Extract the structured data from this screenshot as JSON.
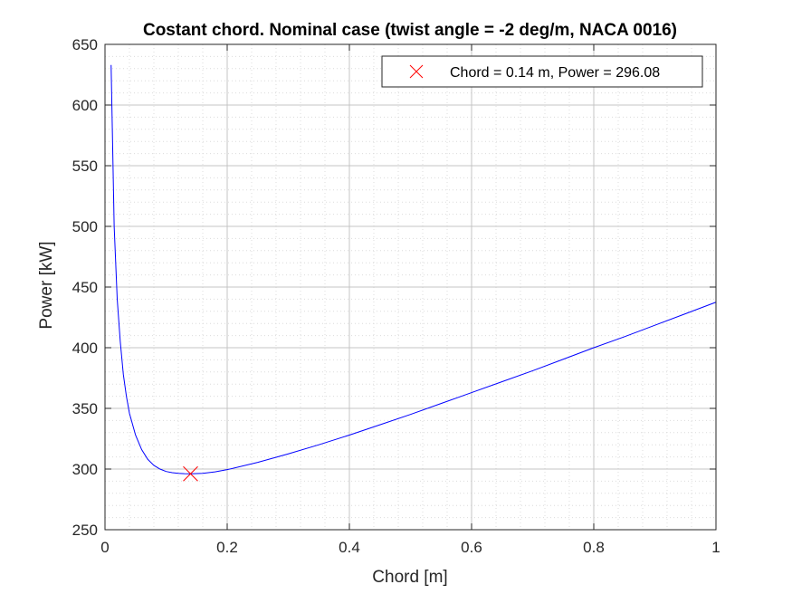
{
  "chart_data": {
    "type": "line",
    "title": "Costant chord. Nominal case (twist angle = -2 deg/m, NACA 0016)",
    "xlabel": "Chord [m]",
    "ylabel": "Power [kW]",
    "xlim": [
      0,
      1
    ],
    "ylim": [
      250,
      650
    ],
    "xticks": [
      0,
      0.2,
      0.4,
      0.6,
      0.8,
      1
    ],
    "xtick_labels": [
      "0",
      "0.2",
      "0.4",
      "0.6",
      "0.8",
      "1"
    ],
    "yticks": [
      250,
      300,
      350,
      400,
      450,
      500,
      550,
      600,
      650
    ],
    "ytick_labels": [
      "250",
      "300",
      "350",
      "400",
      "450",
      "500",
      "550",
      "600",
      "650"
    ],
    "grid": true,
    "minor_grid": true,
    "legend_position": "top-right",
    "series": [
      {
        "color": "#0000ff",
        "x": [
          0.01,
          0.015,
          0.02,
          0.025,
          0.03,
          0.035,
          0.04,
          0.05,
          0.06,
          0.07,
          0.08,
          0.09,
          0.1,
          0.11,
          0.12,
          0.13,
          0.14,
          0.16,
          0.18,
          0.2,
          0.25,
          0.3,
          0.35,
          0.4,
          0.45,
          0.5,
          0.55,
          0.6,
          0.65,
          0.7,
          0.75,
          0.8,
          0.85,
          0.9,
          0.95,
          1.0
        ],
        "y": [
          633,
          500,
          440,
          405,
          378,
          360,
          346,
          328,
          316,
          308,
          303,
          300,
          298,
          297,
          296.5,
          296.2,
          296.08,
          296.5,
          297.7,
          299.5,
          305.5,
          312.5,
          320,
          328,
          336.5,
          345,
          354,
          363,
          372,
          381,
          390.5,
          400,
          409,
          418.5,
          428,
          437.5
        ]
      }
    ],
    "marker": {
      "x": 0.14,
      "y": 296.08,
      "color": "#ff0000",
      "symbol": "x",
      "label": "Chord = 0.14 m, Power = 296.08"
    }
  }
}
